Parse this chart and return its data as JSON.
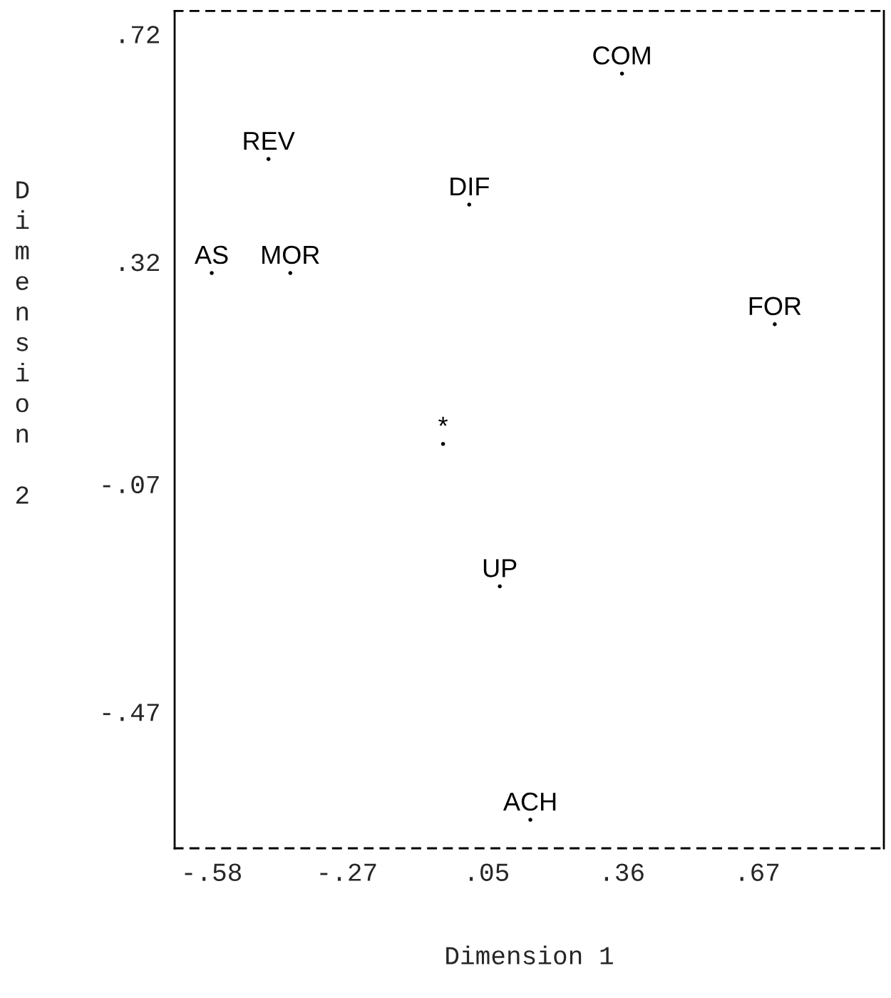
{
  "chart_data": {
    "type": "scatter",
    "xlabel": "Dimension 1",
    "ylabel": "Dimension 2",
    "xlim": [
      -0.665,
      0.96
    ],
    "ylim": [
      -0.71,
      0.76
    ],
    "xticks": [
      {
        "value": -0.58,
        "label": "-.58"
      },
      {
        "value": -0.27,
        "label": "-.27"
      },
      {
        "value": 0.05,
        "label": ".05"
      },
      {
        "value": 0.36,
        "label": ".36"
      },
      {
        "value": 0.67,
        "label": ".67"
      }
    ],
    "yticks": [
      {
        "value": 0.72,
        "label": ".72"
      },
      {
        "value": 0.32,
        "label": ".32"
      },
      {
        "value": -0.07,
        "label": "-.07"
      },
      {
        "value": -0.47,
        "label": "-.47"
      }
    ],
    "grid": false,
    "marker": "circle",
    "series": [
      {
        "color": "#000000",
        "x": [
          0.36,
          -0.45,
          0.01,
          -0.58,
          -0.4,
          0.71,
          -0.05,
          0.08,
          0.15
        ],
        "values": [
          0.65,
          0.5,
          0.42,
          0.3,
          0.3,
          0.21,
          0.0,
          -0.25,
          -0.66
        ],
        "value_labels": [
          "COM",
          "REV",
          "DIF",
          "AS",
          "MOR",
          "FOR",
          "*",
          "UP",
          "ACH"
        ]
      }
    ]
  }
}
